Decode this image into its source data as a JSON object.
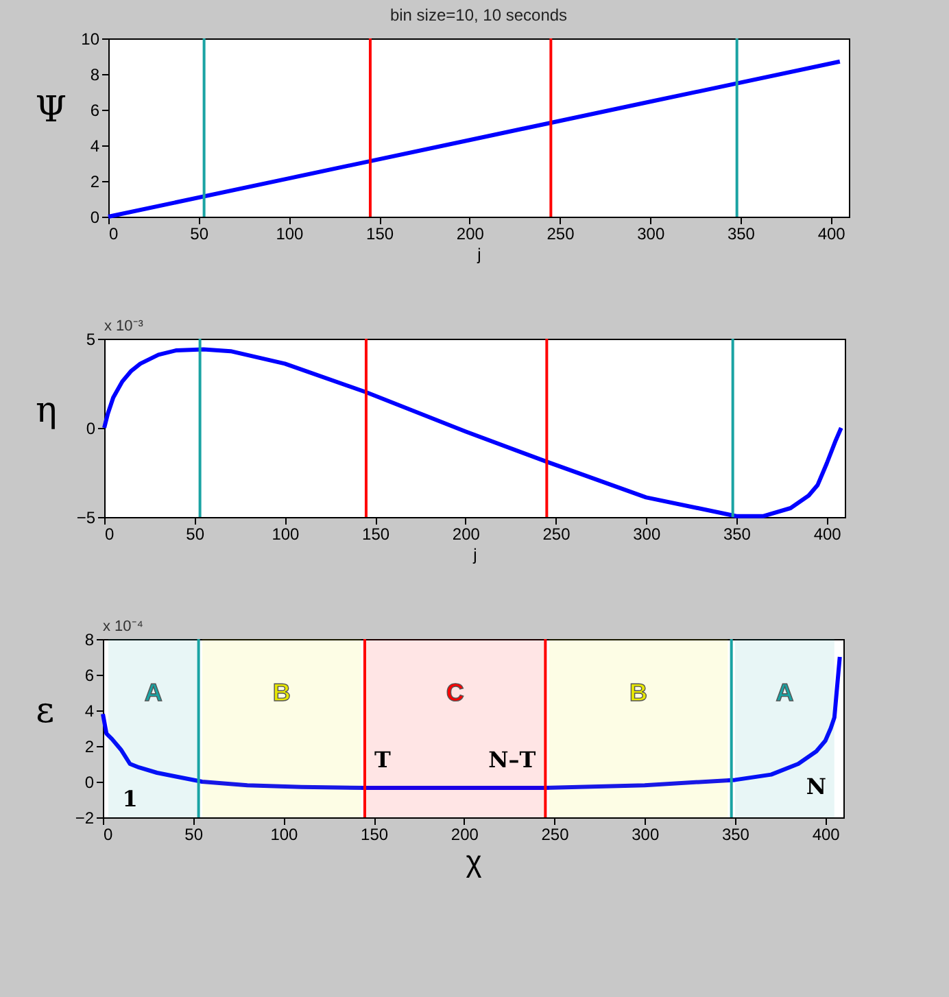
{
  "chart_data": [
    {
      "type": "line",
      "title": "bin size=10, 10 seconds",
      "xlabel": "j",
      "ylabel": "Ψ",
      "xlim": [
        0,
        410
      ],
      "xticks": [
        0,
        50,
        100,
        150,
        200,
        250,
        300,
        350,
        400
      ],
      "ylim": [
        0,
        10
      ],
      "yticks": [
        0,
        2,
        4,
        6,
        8,
        10
      ],
      "x": [
        0,
        100,
        200,
        300,
        405
      ],
      "series": [
        {
          "color": "#0000ff",
          "values": [
            0,
            2.15,
            4.3,
            6.45,
            8.7
          ]
        }
      ],
      "ref_lines": [
        {
          "axis": "x",
          "value": 53,
          "color": "#1aa3a3"
        },
        {
          "axis": "x",
          "value": 145,
          "color": "#ff0000"
        },
        {
          "axis": "x",
          "value": 245,
          "color": "#ff0000"
        },
        {
          "axis": "x",
          "value": 348,
          "color": "#1aa3a3"
        }
      ]
    },
    {
      "type": "line",
      "xlabel": "j",
      "ylabel": "η",
      "xlim": [
        0,
        410
      ],
      "xticks": [
        0,
        50,
        100,
        150,
        200,
        250,
        300,
        350,
        400
      ],
      "ylim": [
        -5,
        5
      ],
      "yticks": [
        -5,
        0,
        5
      ],
      "x": [
        0,
        2,
        5,
        10,
        15,
        20,
        30,
        40,
        55,
        70,
        100,
        145,
        200,
        245,
        300,
        350,
        365,
        380,
        390,
        395,
        400,
        405,
        408
      ],
      "series": [
        {
          "color": "#0000ff",
          "values": [
            0,
            0.8,
            1.7,
            2.6,
            3.2,
            3.6,
            4.1,
            4.35,
            4.4,
            4.3,
            3.6,
            2.0,
            -0.2,
            -1.9,
            -3.9,
            -4.95,
            -4.95,
            -4.5,
            -3.8,
            -3.2,
            -2.0,
            -0.7,
            0
          ]
        }
      ],
      "annotations": [
        "x 10⁻³"
      ],
      "ref_lines": [
        {
          "axis": "x",
          "value": 53,
          "color": "#1aa3a3"
        },
        {
          "axis": "x",
          "value": 145,
          "color": "#ff0000"
        },
        {
          "axis": "x",
          "value": 245,
          "color": "#ff0000"
        },
        {
          "axis": "x",
          "value": 348,
          "color": "#1aa3a3"
        }
      ]
    },
    {
      "type": "line",
      "xlabel": "χ",
      "ylabel": "ε",
      "xlim": [
        0,
        410
      ],
      "xticks": [
        0,
        50,
        100,
        150,
        200,
        250,
        300,
        350,
        400
      ],
      "ylim": [
        -2,
        8
      ],
      "yticks": [
        -2,
        0,
        2,
        4,
        6,
        8
      ],
      "x": [
        0,
        2,
        5,
        10,
        15,
        20,
        30,
        40,
        55,
        80,
        110,
        145,
        200,
        245,
        300,
        350,
        370,
        385,
        395,
        400,
        403,
        405,
        408
      ],
      "series": [
        {
          "color": "#0000ff",
          "values": [
            3.8,
            2.7,
            2.4,
            1.8,
            1.0,
            0.8,
            0.5,
            0.3,
            0.0,
            -0.2,
            -0.3,
            -0.35,
            -0.35,
            -0.35,
            -0.2,
            0.1,
            0.4,
            1.0,
            1.7,
            2.3,
            3.0,
            3.6,
            7.0
          ]
        }
      ],
      "annotations": [
        "x 10⁻⁴",
        {
          "text": "T",
          "x": 145,
          "y": -0.35
        },
        {
          "text": "N–T",
          "x": 245,
          "y": -0.35
        },
        {
          "text": "1",
          "x": 15,
          "y": 1.0
        },
        {
          "text": "N",
          "x": 395,
          "y": 1.7
        }
      ],
      "ref_lines": [
        {
          "axis": "x",
          "value": 53,
          "color": "#1aa3a3"
        },
        {
          "axis": "x",
          "value": 145,
          "color": "#ff0000"
        },
        {
          "axis": "x",
          "value": 245,
          "color": "#ff0000"
        },
        {
          "axis": "x",
          "value": 348,
          "color": "#1aa3a3"
        }
      ],
      "bands": [
        {
          "axis": "x",
          "from": 3,
          "to": 53,
          "label": "A",
          "color": "#1aa3a3"
        },
        {
          "axis": "x",
          "from": 55,
          "to": 143,
          "label": "B",
          "color": "#e8e800"
        },
        {
          "axis": "x",
          "from": 145,
          "to": 245,
          "label": "C",
          "color": "#ff0000"
        },
        {
          "axis": "x",
          "from": 247,
          "to": 346,
          "label": "B",
          "color": "#e8e800"
        },
        {
          "axis": "x",
          "from": 350,
          "to": 405,
          "label": "A",
          "color": "#1aa3a3"
        }
      ]
    }
  ]
}
